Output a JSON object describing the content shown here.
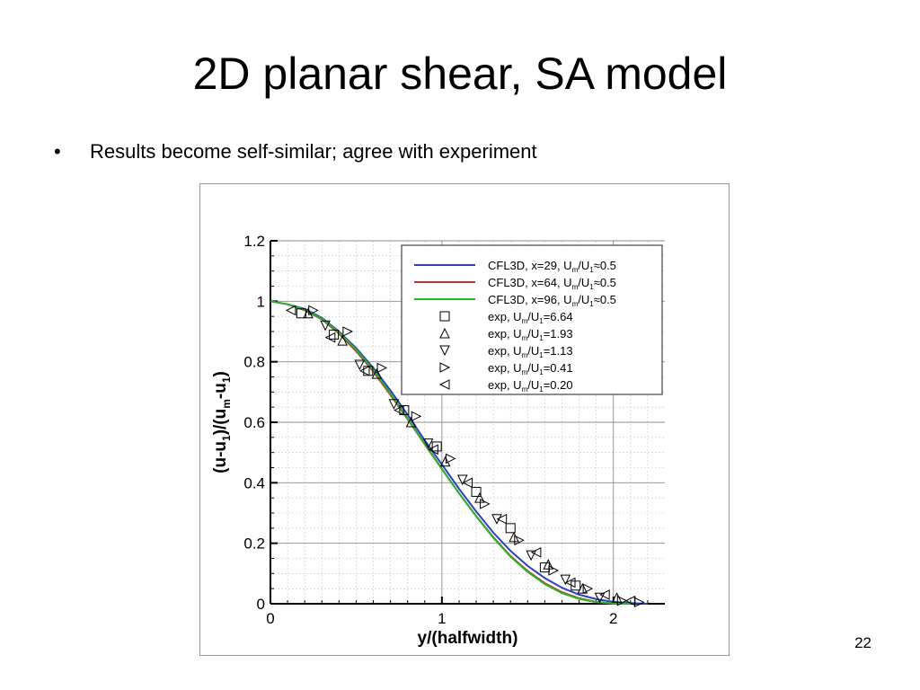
{
  "slide": {
    "title": "2D planar shear, SA model",
    "bullets": [
      "Results become self-similar; agree with experiment"
    ],
    "bullet_symbol": "•",
    "page_number": "22"
  },
  "chart_data": {
    "type": "line",
    "xlabel": "y/(halfwidth)",
    "ylabel": {
      "parts": [
        "(u-u",
        "1",
        ")/(u",
        "m",
        "-u",
        "1",
        ")"
      ]
    },
    "xlim": [
      0,
      2.3
    ],
    "ylim": [
      0,
      1.2
    ],
    "x_ticks": [
      "0",
      "1",
      "2"
    ],
    "x_tick_values": [
      0,
      1,
      2
    ],
    "y_ticks": [
      "0",
      "0.2",
      "0.4",
      "0.6",
      "0.8",
      "1",
      "1.2"
    ],
    "y_tick_values": [
      0,
      0.2,
      0.4,
      0.6,
      0.8,
      1.0,
      1.2
    ],
    "grid": true,
    "legend_placement": "top-right",
    "series": [
      {
        "kind": "line",
        "color": "#2b3fc8",
        "label": [
          "CFL3D, x=29, U",
          "m",
          "/U",
          "1",
          "≈0.5"
        ],
        "x": [
          0,
          0.1,
          0.2,
          0.3,
          0.4,
          0.5,
          0.6,
          0.7,
          0.8,
          0.9,
          1.0,
          1.1,
          1.2,
          1.3,
          1.4,
          1.5,
          1.6,
          1.7,
          1.8,
          1.9,
          2.0,
          2.1,
          2.2
        ],
        "y": [
          1.0,
          0.99,
          0.975,
          0.945,
          0.9,
          0.845,
          0.78,
          0.705,
          0.625,
          0.54,
          0.46,
          0.38,
          0.305,
          0.235,
          0.175,
          0.125,
          0.085,
          0.053,
          0.03,
          0.015,
          0.006,
          0.002,
          0.0
        ]
      },
      {
        "kind": "line",
        "color": "#c83030",
        "label": [
          "CFL3D, x=64, U",
          "m",
          "/U",
          "1",
          "≈0.5"
        ],
        "x": [
          0,
          0.1,
          0.2,
          0.3,
          0.4,
          0.5,
          0.6,
          0.7,
          0.8,
          0.9,
          1.0,
          1.1,
          1.2,
          1.3,
          1.4,
          1.5,
          1.6,
          1.7,
          1.8,
          1.9,
          2.0,
          2.1
        ],
        "y": [
          1.0,
          0.99,
          0.97,
          0.94,
          0.893,
          0.835,
          0.768,
          0.69,
          0.61,
          0.527,
          0.445,
          0.365,
          0.29,
          0.22,
          0.158,
          0.108,
          0.068,
          0.038,
          0.018,
          0.006,
          0.001,
          0.0
        ]
      },
      {
        "kind": "line",
        "color": "#28b428",
        "label": [
          "CFL3D, x=96, U",
          "m",
          "/U",
          "1",
          "≈0.5"
        ],
        "x": [
          0,
          0.1,
          0.2,
          0.3,
          0.4,
          0.5,
          0.6,
          0.7,
          0.8,
          0.9,
          1.0,
          1.1,
          1.2,
          1.3,
          1.4,
          1.5,
          1.6,
          1.7,
          1.8,
          1.9,
          2.0,
          2.1
        ],
        "y": [
          1.0,
          0.99,
          0.972,
          0.942,
          0.897,
          0.84,
          0.773,
          0.695,
          0.613,
          0.529,
          0.446,
          0.365,
          0.289,
          0.218,
          0.156,
          0.105,
          0.065,
          0.035,
          0.016,
          0.005,
          0.001,
          0.0
        ]
      },
      {
        "kind": "marker",
        "marker": "square",
        "label": [
          "exp, U",
          "m",
          "/U",
          "1",
          "=6.64"
        ],
        "x": [
          0.18,
          0.37,
          0.57,
          0.78,
          0.97,
          1.2,
          1.4,
          1.6,
          1.78
        ],
        "y": [
          0.96,
          0.89,
          0.77,
          0.64,
          0.52,
          0.37,
          0.25,
          0.12,
          0.06
        ]
      },
      {
        "kind": "marker",
        "marker": "triangle-up",
        "label": [
          "exp, U",
          "m",
          "/U",
          "1",
          "=1.93"
        ],
        "x": [
          0.22,
          0.42,
          0.62,
          0.82,
          1.02,
          1.22,
          1.42,
          1.62,
          1.82,
          2.02
        ],
        "y": [
          0.96,
          0.87,
          0.76,
          0.6,
          0.47,
          0.35,
          0.22,
          0.13,
          0.05,
          0.02
        ]
      },
      {
        "kind": "marker",
        "marker": "triangle-down",
        "label": [
          "exp, U",
          "m",
          "/U",
          "1",
          "=1.13"
        ],
        "x": [
          0.32,
          0.52,
          0.72,
          0.92,
          1.12,
          1.32,
          1.52,
          1.72,
          1.92
        ],
        "y": [
          0.92,
          0.79,
          0.66,
          0.53,
          0.41,
          0.28,
          0.16,
          0.08,
          0.02
        ]
      },
      {
        "kind": "marker",
        "marker": "triangle-right",
        "label": [
          "exp, U",
          "m",
          "/U",
          "1",
          "=0.41"
        ],
        "x": [
          0.25,
          0.45,
          0.65,
          0.85,
          1.05,
          1.25,
          1.45,
          1.65,
          1.85,
          2.05,
          2.15
        ],
        "y": [
          0.97,
          0.9,
          0.78,
          0.62,
          0.48,
          0.33,
          0.21,
          0.11,
          0.05,
          0.01,
          0.005
        ]
      },
      {
        "kind": "marker",
        "marker": "triangle-left",
        "label": [
          "exp, U",
          "m",
          "/U",
          "1",
          "=0.20"
        ],
        "x": [
          0.12,
          0.35,
          0.55,
          0.75,
          0.95,
          1.15,
          1.35,
          1.55,
          1.75,
          1.95,
          2.1
        ],
        "y": [
          0.97,
          0.88,
          0.77,
          0.64,
          0.51,
          0.4,
          0.28,
          0.17,
          0.07,
          0.03,
          0.01
        ]
      }
    ]
  }
}
